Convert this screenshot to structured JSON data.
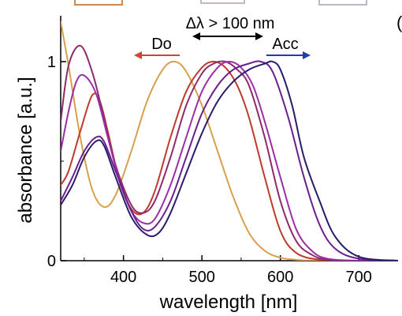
{
  "chart_data": {
    "type": "line",
    "title": "",
    "xlabel": "wavelength [nm]",
    "ylabel": "absorbance [a.u.]",
    "xlim": [
      320,
      750
    ],
    "ylim": [
      0,
      1.1
    ],
    "x_ticks": [
      400,
      500,
      600,
      700
    ],
    "y_ticks": [
      0,
      1
    ],
    "grid": false,
    "annotations": {
      "delta": "Δλ > 100 nm",
      "donor": "Do",
      "acceptor": "Acc"
    },
    "annotation_colors": {
      "donor_arrow": "#d0443a",
      "acceptor_arrow": "#1f3fa8",
      "delta_arrow": "#000000"
    },
    "series": [
      {
        "color": "#d8a04c",
        "x": [
          320,
          330,
          345,
          360,
          375,
          390,
          410,
          430,
          450,
          465,
          480,
          500,
          520,
          540,
          560,
          580,
          600,
          620,
          640,
          660,
          700,
          750
        ],
        "y": [
          1.2,
          0.98,
          0.62,
          0.36,
          0.27,
          0.33,
          0.55,
          0.8,
          0.96,
          1.0,
          0.95,
          0.78,
          0.55,
          0.32,
          0.14,
          0.05,
          0.015,
          0.005,
          0.0,
          0.0,
          0.0,
          0.0
        ]
      },
      {
        "color": "#c0392b",
        "x": [
          320,
          330,
          345,
          360,
          370,
          380,
          395,
          410,
          425,
          440,
          460,
          480,
          500,
          515,
          530,
          545,
          560,
          580,
          600,
          620,
          650,
          700,
          750
        ],
        "y": [
          0.38,
          0.45,
          0.65,
          0.83,
          0.8,
          0.65,
          0.4,
          0.26,
          0.24,
          0.35,
          0.62,
          0.85,
          0.97,
          1.0,
          0.97,
          0.88,
          0.72,
          0.42,
          0.15,
          0.04,
          0.005,
          0.0,
          0.0
        ]
      },
      {
        "color": "#8e2a6a",
        "x": [
          320,
          330,
          345,
          360,
          375,
          390,
          410,
          425,
          440,
          460,
          480,
          500,
          515,
          530,
          545,
          560,
          580,
          600,
          620,
          640,
          660,
          700,
          750
        ],
        "y": [
          0.7,
          0.98,
          1.08,
          0.95,
          0.72,
          0.48,
          0.28,
          0.24,
          0.3,
          0.52,
          0.78,
          0.94,
          0.99,
          1.0,
          0.96,
          0.88,
          0.62,
          0.3,
          0.1,
          0.03,
          0.005,
          0.0,
          0.0
        ]
      },
      {
        "color": "#9b2fa8",
        "x": [
          320,
          330,
          340,
          350,
          365,
          380,
          395,
          410,
          425,
          440,
          460,
          480,
          500,
          520,
          535,
          550,
          565,
          580,
          600,
          620,
          640,
          660,
          700,
          750
        ],
        "y": [
          0.55,
          0.75,
          0.9,
          0.93,
          0.84,
          0.62,
          0.4,
          0.25,
          0.19,
          0.21,
          0.38,
          0.62,
          0.85,
          0.97,
          1.0,
          0.97,
          0.88,
          0.7,
          0.42,
          0.16,
          0.05,
          0.01,
          0.0,
          0.0
        ]
      },
      {
        "color": "#6a1f8a",
        "x": [
          320,
          335,
          350,
          365,
          375,
          390,
          410,
          425,
          440,
          460,
          480,
          500,
          520,
          540,
          560,
          575,
          590,
          610,
          630,
          650,
          670,
          700,
          750
        ],
        "y": [
          0.3,
          0.42,
          0.55,
          0.62,
          0.6,
          0.45,
          0.25,
          0.16,
          0.17,
          0.3,
          0.52,
          0.74,
          0.88,
          0.96,
          0.99,
          1.0,
          0.95,
          0.72,
          0.42,
          0.18,
          0.06,
          0.01,
          0.0
        ]
      },
      {
        "color": "#2b1b6b",
        "x": [
          320,
          335,
          350,
          365,
          375,
          390,
          410,
          430,
          445,
          460,
          480,
          500,
          520,
          540,
          560,
          580,
          590,
          600,
          615,
          630,
          650,
          670,
          700,
          750
        ],
        "y": [
          0.28,
          0.38,
          0.52,
          0.6,
          0.58,
          0.42,
          0.22,
          0.13,
          0.14,
          0.24,
          0.44,
          0.64,
          0.8,
          0.9,
          0.96,
          0.99,
          1.0,
          0.96,
          0.78,
          0.52,
          0.3,
          0.12,
          0.02,
          0.0
        ]
      }
    ]
  }
}
